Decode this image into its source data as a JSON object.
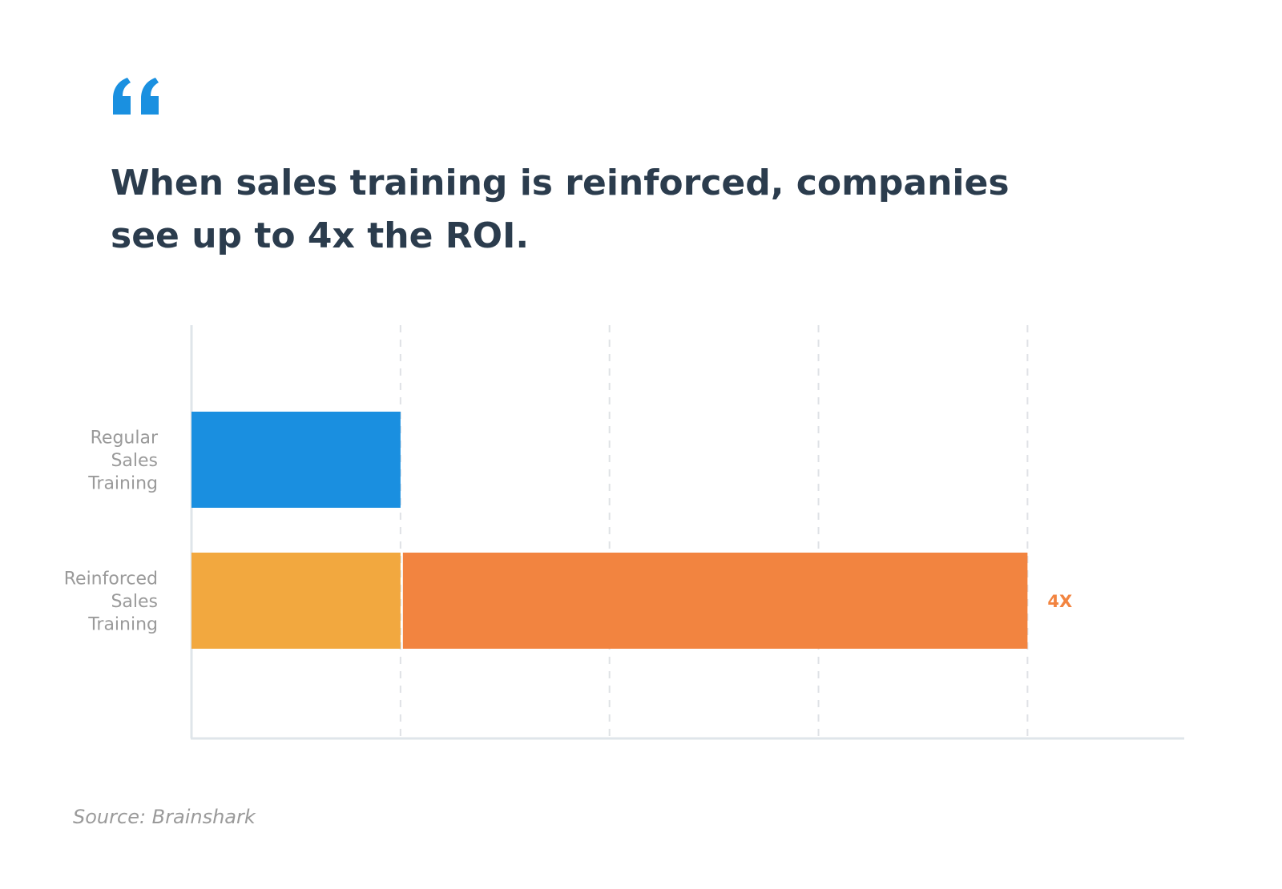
{
  "headline": "When sales training is reinforced, companies see up to 4x the ROI.",
  "source": "Source: Brainshark",
  "icons": {
    "quote": "quote-mark-icon"
  },
  "colors": {
    "text": "#2b3c4d",
    "muted": "#9a9a9a",
    "quote": "#1a90e0",
    "regular_bar": "#1a8fe0",
    "reinforced_base": "#f2a83f",
    "reinforced_extra": "#f28440",
    "grid": "#dfe2e6",
    "axis": "#dfe5ea"
  },
  "chart_data": {
    "type": "bar",
    "orientation": "horizontal",
    "stacked": true,
    "xlim": [
      0,
      4.75
    ],
    "grid": true,
    "categories": [
      [
        "Regular",
        "Sales",
        "Training"
      ],
      [
        "Reinforced",
        "Sales",
        "Training"
      ]
    ],
    "series": [
      {
        "values": [
          1,
          1
        ]
      },
      {
        "values": [
          0,
          3
        ]
      }
    ],
    "data_labels": [
      "",
      "4X"
    ],
    "gridlines_x": [
      1,
      2,
      3,
      4
    ]
  }
}
